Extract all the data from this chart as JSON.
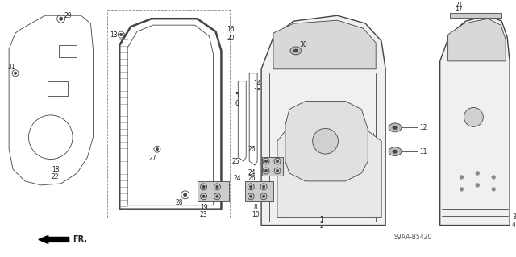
{
  "bg_color": "#ffffff",
  "diagram_code": "S9AA-B5420",
  "fr_label": "FR.",
  "fig_width": 6.4,
  "fig_height": 3.19,
  "line_color": "#444444",
  "label_color": "#222222"
}
